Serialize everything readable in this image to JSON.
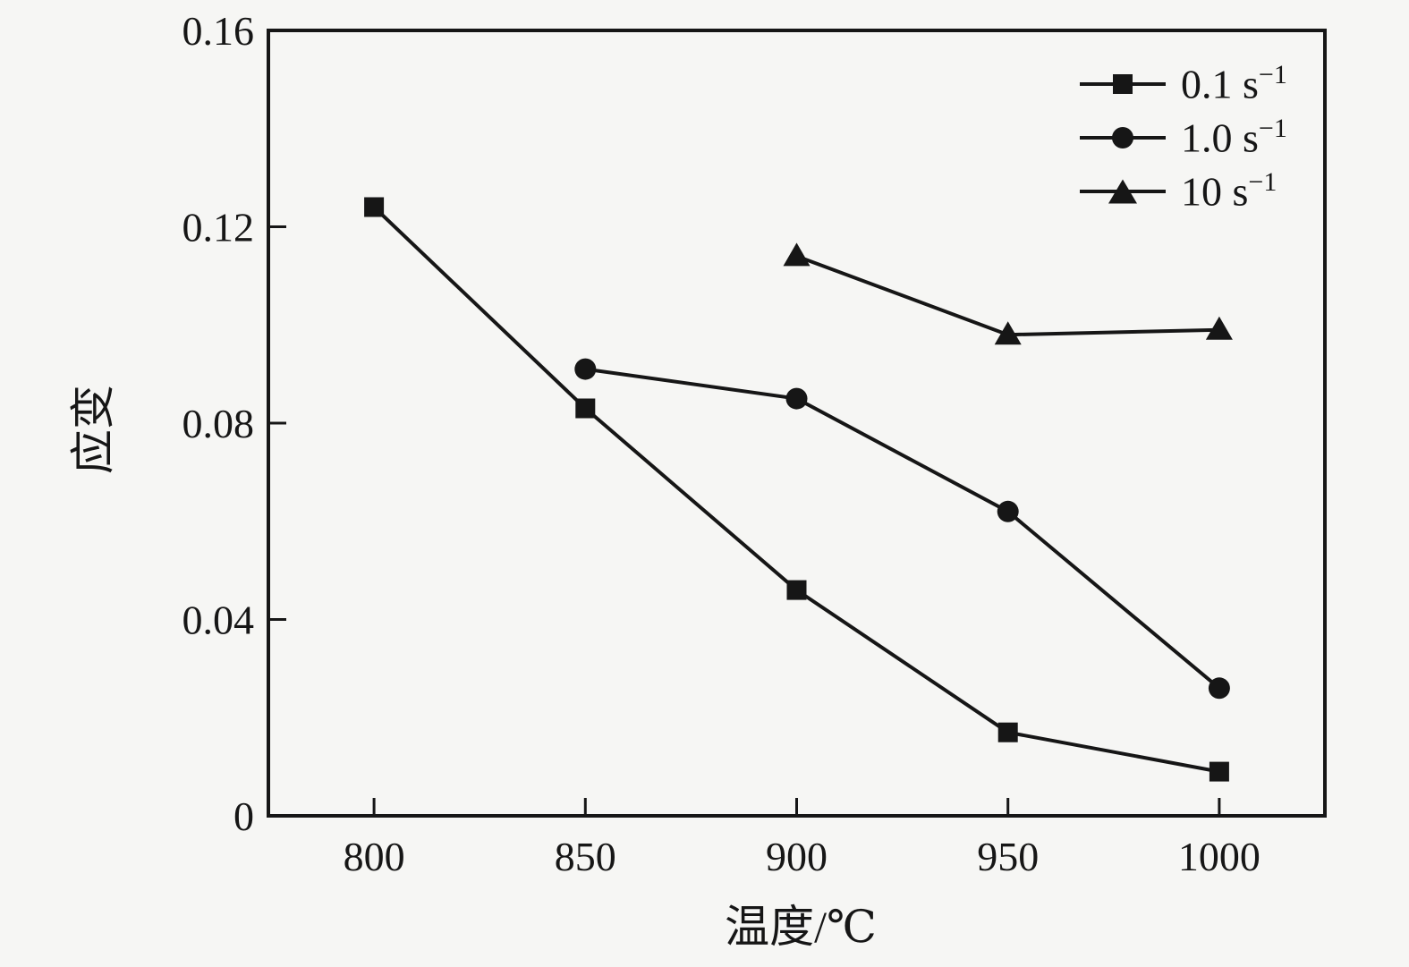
{
  "figure": {
    "background": "#f6f6f4",
    "ink": "#161616"
  },
  "chart_data": {
    "type": "line",
    "title": "",
    "xlabel": "温度/℃",
    "ylabel": "应变",
    "xlim": [
      775,
      1025
    ],
    "ylim": [
      0,
      0.16
    ],
    "x_ticks": [
      800,
      850,
      900,
      950,
      1000
    ],
    "y_ticks": [
      0,
      0.04,
      0.08,
      0.12,
      0.16
    ],
    "y_tick_labels": [
      "0",
      "0.04",
      "0.08",
      "0.12",
      "0.16"
    ],
    "grid": false,
    "legend_position": "top-right-inside",
    "series": [
      {
        "name": "0.1 s⁻¹",
        "legend_base": "0.1 s",
        "legend_exp": "−1",
        "marker": "square",
        "x": [
          800,
          850,
          900,
          950,
          1000
        ],
        "y": [
          0.124,
          0.083,
          0.046,
          0.017,
          0.009
        ]
      },
      {
        "name": "1.0 s⁻¹",
        "legend_base": "1.0 s",
        "legend_exp": "−1",
        "marker": "circle",
        "x": [
          850,
          900,
          950,
          1000
        ],
        "y": [
          0.091,
          0.085,
          0.062,
          0.026
        ]
      },
      {
        "name": "10 s⁻¹",
        "legend_base": "10 s",
        "legend_exp": "−1",
        "marker": "triangle",
        "x": [
          900,
          950,
          1000
        ],
        "y": [
          0.114,
          0.098,
          0.099
        ]
      }
    ]
  }
}
